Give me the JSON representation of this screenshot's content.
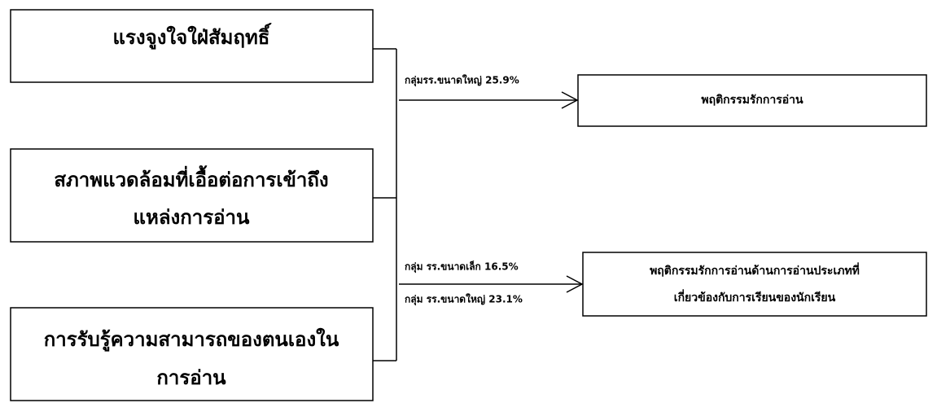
{
  "nodes": [
    {
      "lines": [
        "แรงจูงใจใฝ่สัมฤทธิ์"
      ]
    },
    {
      "lines": [
        "สภาพแวดล้อมที่เอื้อต่อการเข้าถึง",
        "แหล่งการอ่าน"
      ]
    },
    {
      "lines": [
        "การรับรู้ความสามารถของตนเองใน",
        "การอ่าน"
      ]
    },
    {
      "lines": [
        "พฤติกรรมรักการอ่าน"
      ]
    },
    {
      "lines": [
        "พฤติกรรมรักการอ่านด้านการอ่านประเภทที่",
        "เกี่ยวข้องกับการเรียนของนักเรียน"
      ]
    }
  ],
  "edges": [
    {
      "labels": [
        "กลุ่มรร.ขนาดใหญ่  25.9%"
      ]
    },
    {
      "labels": [
        "กลุ่ม รร.ขนาดเล็ก 16.5%",
        "กลุ่ม รร.ขนาดใหญ่ 23.1%"
      ]
    }
  ]
}
